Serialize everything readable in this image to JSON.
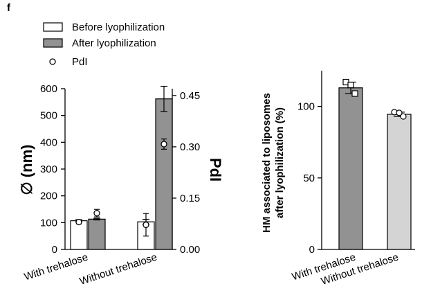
{
  "panel_letter": "f",
  "colors": {
    "before": "#ffffff",
    "after": "#929292",
    "with_trehalose_right": "#929292",
    "without_trehalose_right": "#d4d4d4",
    "outline": "#000000"
  },
  "chart_data": [
    {
      "type": "bar",
      "legend": {
        "entries": [
          "Before lyophilization",
          "After lyophilization",
          "PdI"
        ],
        "placement": "top-left"
      },
      "categories": [
        "With trehalose",
        "Without trehalose"
      ],
      "series": [
        {
          "name": "Before lyophilization",
          "values": [
            107,
            103
          ],
          "errors": [
            4,
            9
          ]
        },
        {
          "name": "After lyophilization",
          "values": [
            113,
            562
          ],
          "errors": [
            3,
            47
          ]
        }
      ],
      "secondary_series": {
        "name": "PdI",
        "points": [
          {
            "category": "With trehalose",
            "group": "Before lyophilization",
            "value": 0.08,
            "error": 0.005
          },
          {
            "category": "With trehalose",
            "group": "After lyophilization",
            "value": 0.106,
            "error": 0.011
          },
          {
            "category": "Without trehalose",
            "group": "Before lyophilization",
            "value": 0.072,
            "error": 0.033
          },
          {
            "category": "Without trehalose",
            "group": "After lyophilization",
            "value": 0.308,
            "error": 0.015
          }
        ]
      },
      "ylabel": "∅ (nm)",
      "ylim": [
        0,
        600
      ],
      "yticks": [
        "0",
        "100",
        "200",
        "300",
        "400",
        "500",
        "600"
      ],
      "y2label": "PdI",
      "y2lim": [
        0,
        0.47
      ],
      "y2ticks": [
        "0.00",
        "0.15",
        "0.30",
        "0.45"
      ],
      "xtick_labels": [
        "With trehalose",
        "Without trehalose"
      ],
      "grid": false
    },
    {
      "type": "bar",
      "categories": [
        "With trehalose",
        "Without trehalose"
      ],
      "values": [
        113,
        94.5
      ],
      "errors": [
        4,
        1.5
      ],
      "replicates": [
        [
          {
            "value": 117,
            "marker": "square"
          },
          {
            "value": 115,
            "marker": "square"
          },
          {
            "value": 109,
            "marker": "square"
          }
        ],
        [
          {
            "value": 96,
            "marker": "circle"
          },
          {
            "value": 95.5,
            "marker": "circle"
          },
          {
            "value": 93,
            "marker": "circle"
          }
        ]
      ],
      "ylabel_lines": [
        "HM associated to liposomes",
        "after lyophilization (%)"
      ],
      "ylim": [
        0,
        125
      ],
      "yticks": [
        "0",
        "50",
        "100"
      ],
      "xtick_labels": [
        "With trehalose",
        "Without trehalose"
      ],
      "grid": false
    }
  ]
}
